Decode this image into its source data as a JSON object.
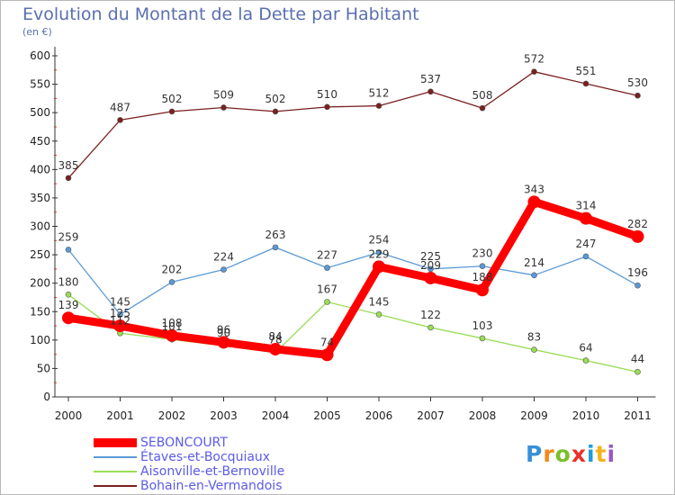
{
  "header": {
    "title": "Evolution du Montant de la Dette par Habitant",
    "unit": "(en €)"
  },
  "chart_data": {
    "type": "line",
    "categories": [
      "2000",
      "2001",
      "2002",
      "2003",
      "2004",
      "2005",
      "2006",
      "2007",
      "2008",
      "2009",
      "2010",
      "2011"
    ],
    "ylim": [
      0,
      600
    ],
    "yticks": [
      0,
      50,
      100,
      150,
      200,
      250,
      300,
      350,
      400,
      450,
      500,
      550,
      600
    ],
    "grid": false,
    "legend_position": "bottom-left",
    "series": [
      {
        "name": "SEBONCOURT",
        "color": "#ff0000",
        "values": [
          139,
          125,
          108,
          96,
          84,
          74,
          229,
          209,
          188,
          343,
          314,
          282
        ],
        "labels": [
          "139",
          "125",
          "108",
          "96",
          "84",
          "74",
          "229",
          "209",
          "188",
          "343",
          "314",
          "282"
        ]
      },
      {
        "name": "Étaves-et-Bocquiaux",
        "color": "#5a9ad6",
        "values": [
          259,
          145,
          202,
          224,
          263,
          227,
          254,
          225,
          230,
          214,
          247,
          196
        ],
        "labels": [
          "259",
          "145",
          "202",
          "224",
          "263",
          "227",
          "254",
          "225",
          "230",
          "214",
          "247",
          "196"
        ]
      },
      {
        "name": "Aisonville-et-Bernoville",
        "color": "#99dd55",
        "values": [
          180,
          112,
          101,
          90,
          78,
          167,
          145,
          122,
          103,
          83,
          64,
          44
        ],
        "labels": [
          "180",
          "112",
          "101",
          "90",
          "78",
          "167",
          "145",
          "122",
          "103",
          "83",
          "64",
          "44"
        ]
      },
      {
        "name": "Bohain-en-Vermandois",
        "color": "#7a1f1f",
        "values": [
          385,
          487,
          502,
          509,
          502,
          510,
          512,
          537,
          508,
          572,
          551,
          530
        ],
        "labels": [
          "385",
          "487",
          "502",
          "509",
          "502",
          "510",
          "512",
          "537",
          "508",
          "572",
          "551",
          "530"
        ]
      }
    ]
  },
  "logo": {
    "letters": [
      "P",
      "r",
      "o",
      "x",
      "i",
      "t",
      "i"
    ],
    "colors": [
      "#3a8fd8",
      "#f08a1c",
      "#7bbf2a",
      "#e8312a",
      "#1e9bd7",
      "#f5b21b",
      "#9a55c8"
    ]
  }
}
